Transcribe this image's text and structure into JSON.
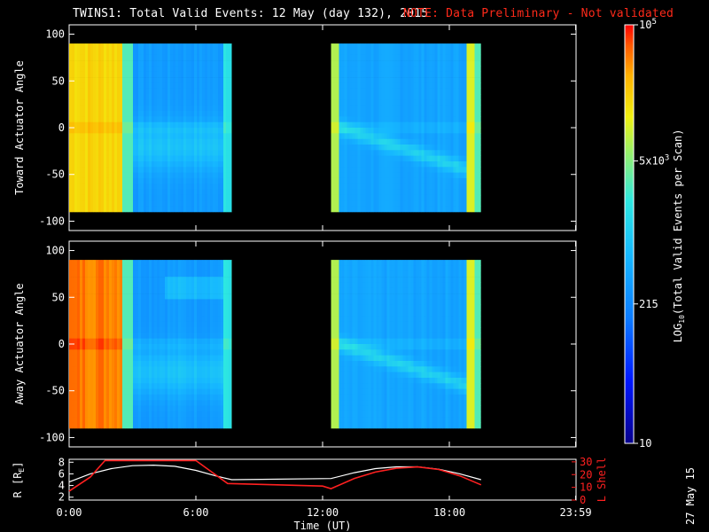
{
  "title": {
    "main": "TWINS1: Total Valid Events: 12 May (day 132), 2015",
    "note": "NOTE: Data Preliminary - Not validated"
  },
  "colorbar": {
    "label": "LOG10(Total Valid Events per Scan)",
    "label_main": "LOG",
    "label_sub": "10",
    "label_rest": "(Total Valid Events per Scan)",
    "ticks": [
      {
        "text": "10",
        "value": 10
      },
      {
        "text": "215",
        "value": 215
      },
      {
        "text": "5x10^3",
        "value": 5000
      },
      {
        "text": "10^5",
        "value": 100000
      }
    ]
  },
  "date_stamp": "27 May 15",
  "colors": {
    "background": "#000000",
    "note": "#ff2a1a",
    "lshell": "#ff2020",
    "r_line": "#ffffff"
  },
  "chart_data": [
    {
      "type": "heatmap",
      "name": "toward",
      "ylabel": "Toward Actuator Angle",
      "xlim": [
        0,
        24
      ],
      "ylim": [
        -110,
        110
      ],
      "data_yrange": [
        -90,
        90
      ],
      "yticks": [
        100,
        50,
        0,
        -50,
        -100
      ],
      "data_segments": [
        [
          0,
          7.7
        ],
        [
          12.4,
          19.5
        ]
      ]
    },
    {
      "type": "heatmap",
      "name": "away",
      "ylabel": "Away Actuator Angle",
      "xlim": [
        0,
        24
      ],
      "ylim": [
        -110,
        110
      ],
      "data_yrange": [
        -90,
        90
      ],
      "yticks": [
        100,
        50,
        0,
        -50,
        -100
      ],
      "data_segments": [
        [
          0,
          7.7
        ],
        [
          12.4,
          19.5
        ]
      ]
    },
    {
      "type": "line",
      "name": "orbit",
      "xlabel": "Time (UT)",
      "xticks": [
        "0:00",
        "6:00",
        "12:00",
        "18:00",
        "23:59"
      ],
      "xtick_values": [
        0,
        6,
        12,
        18,
        23.98
      ],
      "xlim": [
        0,
        24
      ],
      "left_axis": {
        "label": "R [RE]",
        "label_main": "R [R",
        "label_sub": "E",
        "label_end": "]",
        "ticks": [
          2,
          4,
          6,
          8
        ],
        "ylim": [
          1.5,
          8.5
        ]
      },
      "right_axis": {
        "label": "L Shell",
        "ticks": [
          0,
          10,
          20,
          30
        ],
        "ylim": [
          0,
          32
        ]
      },
      "series": [
        {
          "axis": "left",
          "color": "#ffffff",
          "x": [
            0.0,
            1.0,
            2.0,
            3.0,
            4.0,
            5.0,
            6.0,
            7.0,
            7.7,
            12.4,
            13.5,
            14.5,
            15.5,
            16.5,
            17.5,
            18.5,
            19.5
          ],
          "y": [
            4.6,
            6.0,
            6.9,
            7.4,
            7.5,
            7.3,
            6.6,
            5.6,
            5.0,
            5.2,
            6.2,
            6.9,
            7.2,
            7.2,
            6.8,
            6.0,
            5.0
          ]
        },
        {
          "axis": "right",
          "color": "#ff2020",
          "x": [
            0.0,
            1.0,
            1.7,
            6.0,
            7.5,
            12.0,
            12.4,
            13.5,
            14.5,
            15.5,
            16.5,
            17.5,
            18.5,
            19.5
          ],
          "y": [
            7.0,
            18.0,
            31.0,
            31.0,
            13.0,
            11.0,
            9.0,
            17.0,
            22.0,
            25.0,
            26.0,
            24.0,
            19.0,
            12.0
          ]
        }
      ]
    }
  ]
}
